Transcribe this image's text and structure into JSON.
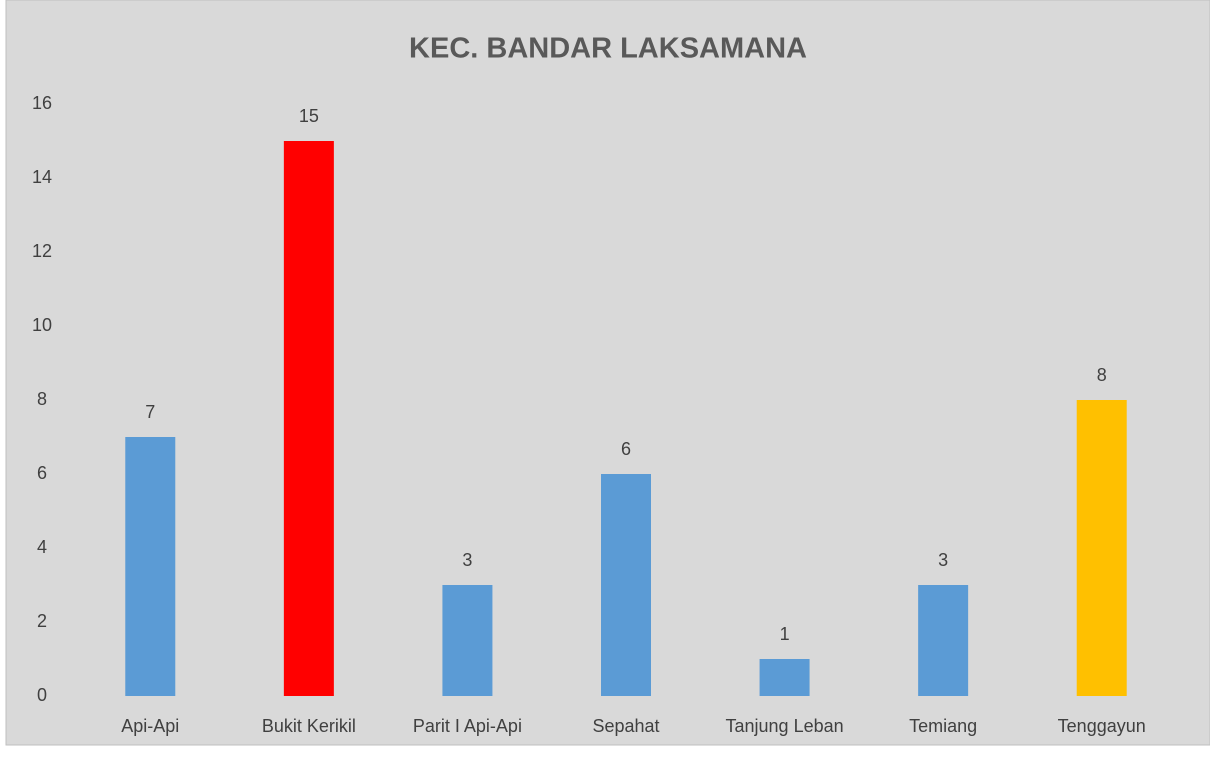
{
  "chart_data": {
    "type": "bar",
    "title": "KEC. BANDAR LAKSAMANA",
    "categories": [
      "Api-Api",
      "Bukit Kerikil",
      "Parit I Api-Api",
      "Sepahat",
      "Tanjung Leban",
      "Temiang",
      "Tenggayun"
    ],
    "values": [
      7,
      15,
      3,
      6,
      1,
      3,
      8
    ],
    "colors": [
      "#5b9bd5",
      "#ff0000",
      "#5b9bd5",
      "#5b9bd5",
      "#5b9bd5",
      "#5b9bd5",
      "#ffc000"
    ],
    "ylim": [
      0,
      16
    ],
    "yticks": [
      0,
      2,
      4,
      6,
      8,
      10,
      12,
      14,
      16
    ],
    "grid": false
  }
}
